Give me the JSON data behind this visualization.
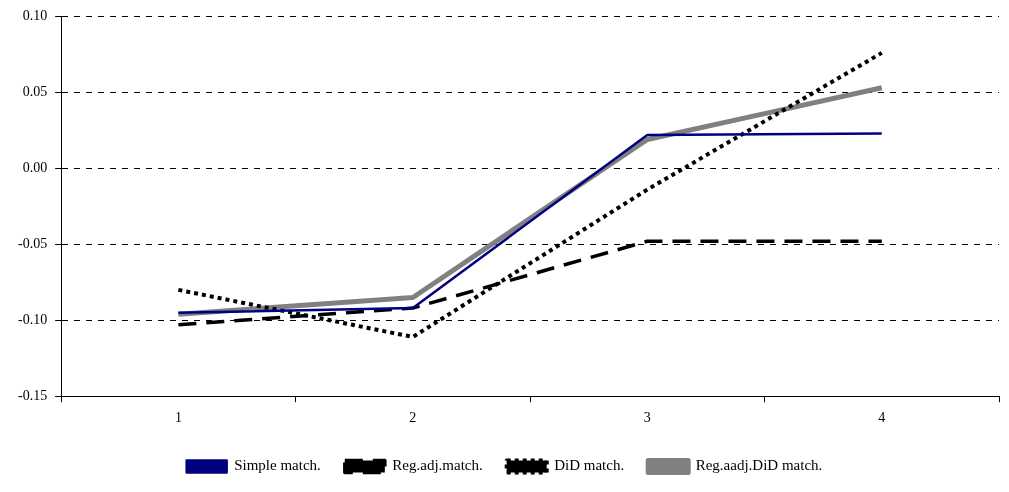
{
  "chart_data": {
    "type": "line",
    "categories": [
      "1",
      "2",
      "3",
      "4"
    ],
    "ylim": [
      -0.15,
      0.1
    ],
    "yticks": [
      {
        "value": -0.15,
        "label": "-0.15"
      },
      {
        "value": -0.1,
        "label": "-0.10"
      },
      {
        "value": -0.05,
        "label": "-0.05"
      },
      {
        "value": 0,
        "label": "0.00"
      },
      {
        "value": 0.05,
        "label": "0.05"
      },
      {
        "value": 0.1,
        "label": "0.10"
      }
    ],
    "grid": "y",
    "legend": "bottom",
    "marker": "none",
    "series": [
      {
        "name": "Simple match.",
        "color": "#000080",
        "line_style": "solid",
        "values": [
          -0.095,
          -0.092,
          0.022,
          0.023
        ]
      },
      {
        "name": "Reg.adj.match.",
        "color": "#000000",
        "line_style": "dashed",
        "values": [
          -0.103,
          -0.092,
          -0.048,
          -0.048
        ]
      },
      {
        "name": "DiD match.",
        "color": "#000000",
        "line_style": "dotted",
        "values": [
          -0.08,
          -0.111,
          -0.014,
          0.076
        ]
      },
      {
        "name": "Reg.aadj.DiD match.",
        "color": "#808080",
        "line_style": "solid",
        "values": [
          -0.096,
          -0.085,
          0.019,
          0.053
        ]
      }
    ]
  }
}
